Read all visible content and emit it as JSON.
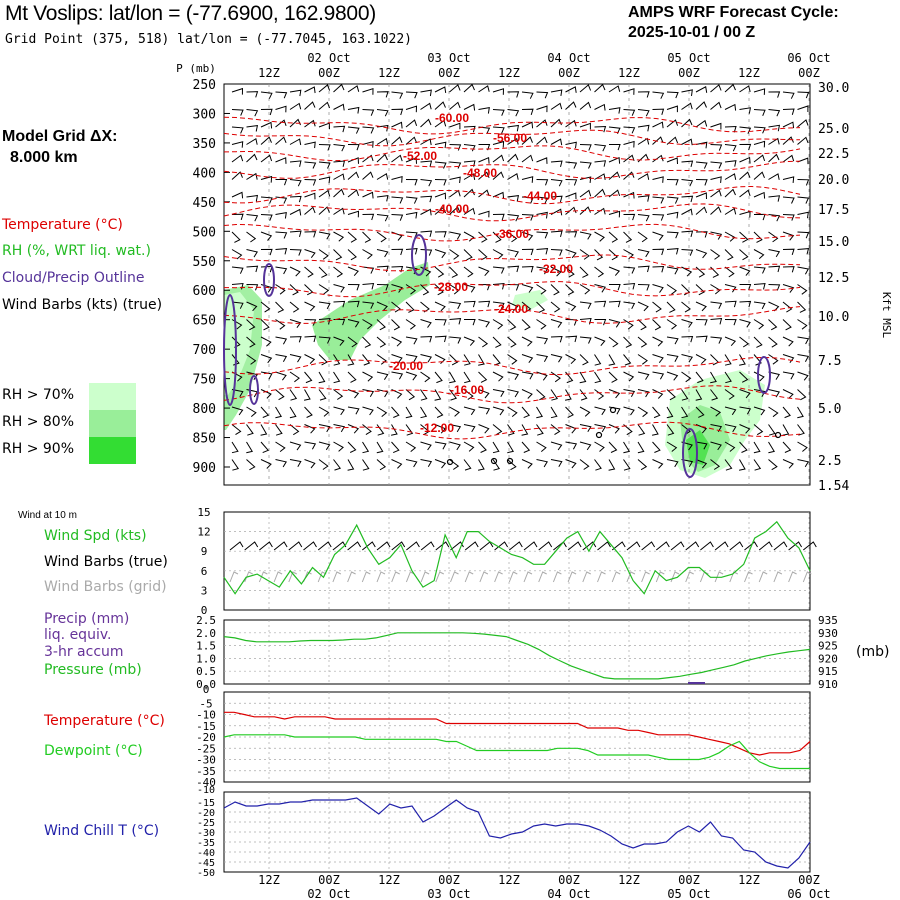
{
  "header": {
    "title": "Mt Voslips:  lat/lon = (-77.6900, 162.9800)",
    "grid_point": "Grid Point (375, 518) lat/lon = (-77.7045, 163.1022)",
    "cycle_label": "AMPS WRF Forecast Cycle:",
    "cycle_value": "2025-10-01 / 00  Z"
  },
  "left_panel": {
    "model_grid_label": "Model Grid ΔX:",
    "model_grid_value": "8.000 km",
    "temperature_label": "Temperature (°C)",
    "rh_label": "RH (%, WRT liq. wat.)",
    "cloud_label": "Cloud/Precip Outline",
    "wind_label": "Wind Barbs (kts) (true)",
    "rh_legend": [
      "RH > 70%",
      "RH > 80%",
      "RH > 90%"
    ],
    "wind10_label": "Wind at 10 m",
    "wind_spd_label": "Wind Spd (kts)",
    "wind_true_label": "Wind Barbs (true)",
    "wind_grid_label": "Wind Barbs (grid)",
    "precip_label": [
      "Precip (mm)",
      "liq. equiv.",
      "3-hr accum"
    ],
    "pressure_label": "Pressure (mb)",
    "mb_unit": "(mb)",
    "temp_label": "Temperature (°C)",
    "dew_label": "Dewpoint (°C)",
    "windchill_label": "Wind Chill T (°C)"
  },
  "colors": {
    "temperature": "#dd0000",
    "rh70": "#ccffcc",
    "rh80": "#99ee99",
    "rh90": "#33dd33",
    "cloud": "#553399",
    "wind_spd": "#22bb22",
    "dewpoint": "#22cc22",
    "windchill": "#2222aa",
    "grid_barb": "#aaaaaa",
    "precip_label": "#663399"
  },
  "chart_data": [
    {
      "type": "time-height cross section",
      "time_top_labels": [
        "12Z",
        "00Z",
        "12Z",
        "00Z",
        "12Z",
        "00Z",
        "12Z",
        "00Z",
        "12Z",
        "00Z"
      ],
      "date_top_labels": [
        "02 Oct",
        "03 Oct",
        "04 Oct",
        "05 Oct",
        "06 Oct"
      ],
      "ylabel": "P (mb)",
      "pressure_ticks": [
        250,
        300,
        350,
        400,
        450,
        500,
        550,
        600,
        650,
        700,
        750,
        800,
        850,
        900
      ],
      "right_axis_label": "Kft MSL",
      "kft_ticks": [
        "30.0",
        "25.0",
        "22.5",
        "20.0",
        "17.5",
        "15.0",
        "12.5",
        "10.0",
        "7.5",
        "5.0",
        "2.5",
        "1.54"
      ],
      "temperature_contour_labels": [
        "-60.00",
        "-56.00",
        "-52.00",
        "-48.00",
        "-44.00",
        "-40.00",
        "-36.00",
        "-32.00",
        "-28.00",
        "-24.00",
        "-20.00",
        "-16.00",
        "-12.00"
      ]
    },
    {
      "type": "line",
      "title": "Wind Spd (kts)",
      "ylim": [
        0,
        15
      ],
      "yticks": [
        0,
        3,
        6,
        9,
        12,
        15
      ],
      "values": [
        5,
        2.5,
        5,
        5.5,
        4.5,
        3.5,
        6,
        4,
        6.5,
        5,
        8.5,
        10,
        13,
        9.5,
        7,
        8,
        10,
        6,
        3.5,
        4.5,
        11.5,
        8,
        12,
        12,
        10.5,
        9.5,
        8.5,
        8,
        7,
        7,
        9,
        11,
        12,
        9,
        12,
        10,
        8,
        4.5,
        2.5,
        6,
        4.5,
        5,
        6.5,
        6.5,
        5,
        5,
        5.5,
        7,
        11,
        12,
        13.5,
        11,
        9.5,
        6
      ]
    },
    {
      "type": "line",
      "title": "Pressure (mb)",
      "left_yticks": [
        "2.5",
        "2.0",
        "1.5",
        "1.0",
        "0.5",
        "0.0"
      ],
      "right_yticks": [
        935,
        930,
        925,
        920,
        915,
        910
      ],
      "right_ylim": [
        910,
        935
      ],
      "values": [
        928.5,
        928,
        927,
        926.5,
        926.5,
        926.5,
        926.5,
        926.8,
        927,
        927,
        927,
        927.2,
        927.5,
        927.5,
        928,
        929,
        930,
        930,
        930,
        930,
        930,
        930,
        930,
        929.8,
        929.5,
        929,
        928.5,
        927,
        925.5,
        923.5,
        921,
        919,
        917,
        915.5,
        914,
        912.5,
        912,
        912,
        912,
        912,
        912,
        912.5,
        913,
        913.8,
        914.5,
        915.5,
        916.5,
        917.5,
        919,
        920,
        921,
        921.8,
        922.5,
        923,
        923.5
      ]
    },
    {
      "type": "line",
      "series": [
        {
          "name": "Temperature (°C)",
          "values": [
            -9,
            -9,
            -10,
            -11,
            -11,
            -11,
            -12,
            -11,
            -11,
            -11,
            -11,
            -12,
            -12,
            -12,
            -12,
            -12,
            -12,
            -12,
            -12,
            -12,
            -12,
            -12,
            -14,
            -14,
            -14,
            -14,
            -14,
            -14,
            -14,
            -14,
            -14,
            -14,
            -14,
            -14,
            -14,
            -14,
            -16,
            -16,
            -16,
            -16,
            -17,
            -17,
            -18,
            -19,
            -19,
            -19,
            -19,
            -20,
            -21,
            -22,
            -23,
            -25,
            -27,
            -28,
            -27,
            -27,
            -27,
            -26,
            -22
          ]
        },
        {
          "name": "Dewpoint (°C)",
          "values": [
            -20,
            -19,
            -19,
            -19,
            -19,
            -19,
            -19,
            -20,
            -20,
            -20,
            -20,
            -20,
            -20,
            -20,
            -21,
            -21,
            -21,
            -21,
            -21,
            -21,
            -21,
            -21,
            -22,
            -22,
            -24,
            -26,
            -26,
            -26,
            -26,
            -26,
            -26,
            -26,
            -26,
            -25,
            -25,
            -25,
            -26,
            -28,
            -28,
            -28,
            -28,
            -28,
            -28,
            -29,
            -30,
            -30,
            -30,
            -30,
            -29,
            -27,
            -24,
            -22,
            -27,
            -31,
            -33,
            -34,
            -34,
            -34,
            -34
          ]
        }
      ],
      "ylim": [
        -40,
        0
      ],
      "yticks": [
        -5,
        -10,
        -15,
        -20,
        -25,
        -30,
        -35,
        -40
      ]
    },
    {
      "type": "line",
      "title": "Wind Chill T (°C)",
      "ylim": [
        -50,
        -10
      ],
      "yticks": [
        -15,
        -20,
        -25,
        -30,
        -35,
        -40,
        -45,
        -50
      ],
      "values": [
        -18,
        -15,
        -17,
        -17,
        -16,
        -16,
        -15,
        -15,
        -14,
        -14,
        -14,
        -14,
        -13,
        -17,
        -21,
        -16,
        -18,
        -17,
        -25,
        -22,
        -18,
        -14,
        -18,
        -20,
        -32,
        -33,
        -31,
        -30,
        -27,
        -26,
        -27,
        -26,
        -26,
        -27,
        -29,
        -32,
        -36,
        -38,
        -36,
        -36,
        -35,
        -30,
        -27,
        -30,
        -25,
        -32,
        -33,
        -39,
        -40,
        -45,
        -47,
        -48,
        -43,
        -35
      ]
    }
  ],
  "bottom_axis": {
    "time_labels": [
      "12Z",
      "00Z",
      "12Z",
      "00Z",
      "12Z",
      "00Z",
      "12Z",
      "00Z",
      "12Z",
      "00Z"
    ],
    "date_labels": [
      "02 Oct",
      "03 Oct",
      "04 Oct",
      "05 Oct",
      "06 Oct"
    ]
  }
}
